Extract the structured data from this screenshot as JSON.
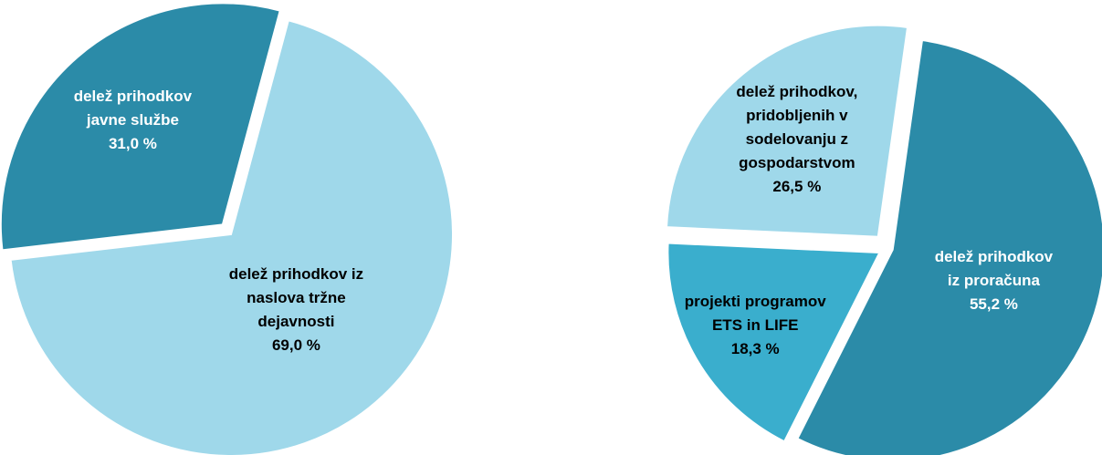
{
  "chart_data": [
    {
      "type": "pie",
      "categories": [
        "delež prihodkov iz naslova tržne dejavnosti",
        "delež prihodkov javne službe"
      ],
      "values": [
        69.0,
        31.0
      ],
      "value_labels": [
        "69,0 %",
        "31,0 %"
      ],
      "colors": [
        "#9fd8ea",
        "#2b8ba8"
      ]
    },
    {
      "type": "pie",
      "categories": [
        "delež prihodkov iz proračuna",
        "projekti programov ETS in LIFE",
        "delež prihodkov, pridobljenih v sodelovanju z gospodarstvom"
      ],
      "values": [
        55.2,
        18.3,
        26.5
      ],
      "value_labels": [
        "55,2 %",
        "18,3 %",
        "26,5 %"
      ],
      "colors": [
        "#2b8ba8",
        "#3aaecd",
        "#9fd8ea"
      ]
    }
  ]
}
